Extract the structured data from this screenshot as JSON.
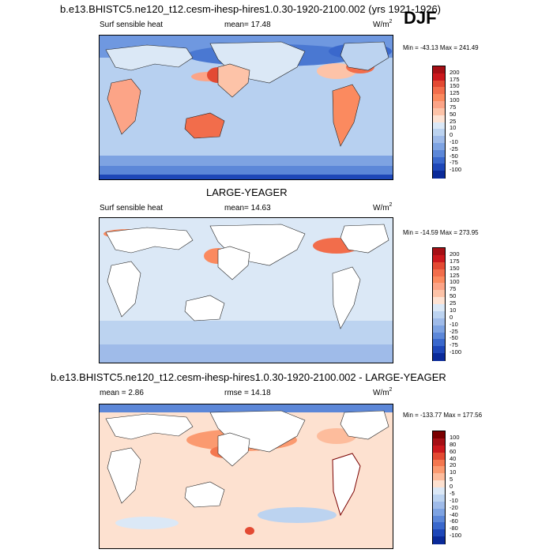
{
  "header": {
    "title": "b.e13.BHISTC5.ne120_t12.cesm-ihesp-hires1.0.30-1920-2100.002 (yrs 1921-1926)",
    "season": "DJF"
  },
  "panels": [
    {
      "id": "model",
      "heading": "",
      "var_label": "Surf sensible heat",
      "mean_label": "mean=",
      "mean_value": "17.48",
      "rmse_label": "",
      "rmse_value": "",
      "units": "W/m",
      "units_sup": "2",
      "minmax": "Min = -43.13 Max = 241.49"
    },
    {
      "id": "obs",
      "heading": "LARGE-YEAGER",
      "var_label": "Surf sensible heat",
      "mean_label": "mean=",
      "mean_value": "14.63",
      "rmse_label": "",
      "rmse_value": "",
      "units": "W/m",
      "units_sup": "2",
      "minmax": "Min = -14.59 Max = 273.95"
    },
    {
      "id": "diff",
      "heading": "b.e13.BHISTC5.ne120_t12.cesm-ihesp-hires1.0.30-1920-2100.002 - LARGE-YEAGER",
      "var_label": "",
      "mean_label": "mean =",
      "mean_value": "2.86",
      "rmse_label": "rmse =",
      "rmse_value": "14.18",
      "units": "W/m",
      "units_sup": "2",
      "minmax": "Min = -133.77 Max = 177.56"
    }
  ],
  "chart_data": [
    {
      "type": "heatmap",
      "title": "b.e13.BHISTC5.ne120_t12.cesm-ihesp-hires1.0.30-1920-2100.002 (yrs 1921-1926)",
      "variable": "Surf sensible heat",
      "units": "W/m2",
      "season": "DJF",
      "mean": 17.48,
      "min": -43.13,
      "max": 241.49,
      "colorbar_levels": [
        "200",
        "175",
        "150",
        "125",
        "100",
        "75",
        "50",
        "25",
        "10",
        "0",
        "-10",
        "-25",
        "-50",
        "-75",
        "-100"
      ],
      "colorbar_colors": [
        "#a50f15",
        "#cb181d",
        "#e34a33",
        "#f26d4b",
        "#fb8a5f",
        "#fca487",
        "#fdc3a8",
        "#fde3d4",
        "#dbe8f6",
        "#bcd3f0",
        "#9fbbe9",
        "#7ea3e2",
        "#5c87d8",
        "#3a68cc",
        "#1e47b8",
        "#0a2a99"
      ]
    },
    {
      "type": "heatmap",
      "title": "LARGE-YEAGER",
      "variable": "Surf sensible heat",
      "units": "W/m2",
      "season": "DJF",
      "mean": 14.63,
      "min": -14.59,
      "max": 273.95,
      "colorbar_levels": [
        "200",
        "175",
        "150",
        "125",
        "100",
        "75",
        "50",
        "25",
        "10",
        "0",
        "-10",
        "-25",
        "-50",
        "-75",
        "-100"
      ],
      "colorbar_colors": [
        "#a50f15",
        "#cb181d",
        "#e34a33",
        "#f26d4b",
        "#fb8a5f",
        "#fca487",
        "#fdc3a8",
        "#fde3d4",
        "#dbe8f6",
        "#bcd3f0",
        "#9fbbe9",
        "#7ea3e2",
        "#5c87d8",
        "#3a68cc",
        "#1e47b8",
        "#0a2a99"
      ]
    },
    {
      "type": "heatmap",
      "title": "b.e13.BHISTC5.ne120_t12.cesm-ihesp-hires1.0.30-1920-2100.002 - LARGE-YEAGER",
      "units": "W/m2",
      "season": "DJF",
      "mean": 2.86,
      "rmse": 14.18,
      "min": -133.77,
      "max": 177.56,
      "colorbar_levels": [
        "100",
        "80",
        "60",
        "40",
        "20",
        "10",
        "5",
        "0",
        "-5",
        "-10",
        "-20",
        "-40",
        "-60",
        "-80",
        "-100"
      ],
      "colorbar_colors": [
        "#7a0000",
        "#a50f15",
        "#cb181d",
        "#e34a33",
        "#f4774f",
        "#fb9a70",
        "#fdbc9c",
        "#fde1d0",
        "#dbe8f6",
        "#bcd3f0",
        "#9fbbe9",
        "#7ea3e2",
        "#5c87d8",
        "#3a68cc",
        "#1e47b8",
        "#0a2a99"
      ]
    }
  ]
}
